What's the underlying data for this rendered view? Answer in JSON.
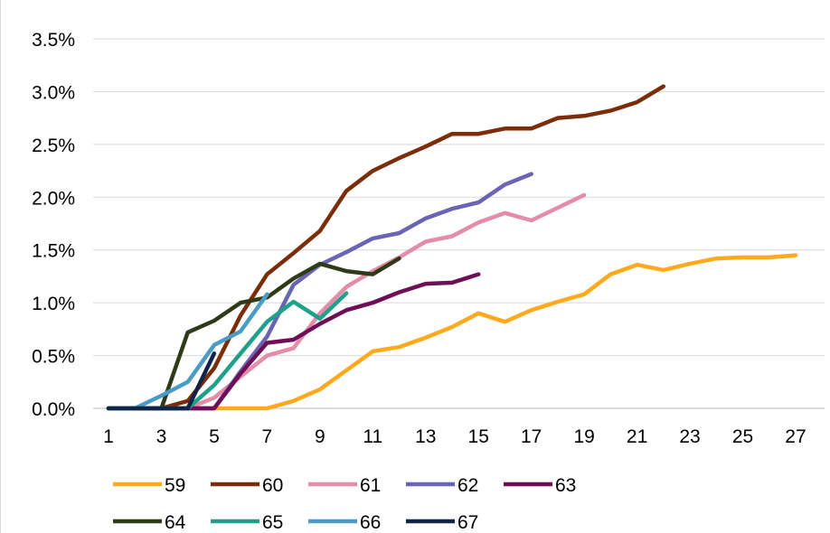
{
  "chart_data": {
    "type": "line",
    "title": "",
    "xlabel": "",
    "ylabel": "",
    "x_tick_labels": [
      "1",
      "3",
      "5",
      "7",
      "9",
      "11",
      "13",
      "15",
      "17",
      "19",
      "21",
      "23",
      "25",
      "27"
    ],
    "y_tick_labels": [
      "0.0%",
      "0.5%",
      "1.0%",
      "1.5%",
      "2.0%",
      "2.5%",
      "3.0%",
      "3.5%"
    ],
    "xlim": [
      1,
      28
    ],
    "ylim": [
      0,
      3.5
    ],
    "y_unit": "%",
    "grid": true,
    "legend_position": "bottom",
    "series": [
      {
        "name": "59",
        "color": "#FFAA1C",
        "x": [
          1,
          2,
          3,
          4,
          5,
          6,
          7,
          8,
          9,
          10,
          11,
          12,
          13,
          14,
          15,
          16,
          17,
          18,
          19,
          20,
          21,
          22,
          23,
          24,
          25,
          26,
          27
        ],
        "values": [
          0,
          0,
          0,
          0,
          0,
          0,
          0,
          0.07,
          0.18,
          0.36,
          0.54,
          0.58,
          0.67,
          0.77,
          0.9,
          0.82,
          0.93,
          1.01,
          1.08,
          1.27,
          1.36,
          1.31,
          1.37,
          1.42,
          1.43,
          1.43,
          1.45
        ]
      },
      {
        "name": "60",
        "color": "#7B2D0A",
        "x": [
          1,
          2,
          3,
          4,
          5,
          6,
          7,
          8,
          9,
          10,
          11,
          12,
          13,
          14,
          15,
          16,
          17,
          18,
          19,
          20,
          21,
          22
        ],
        "values": [
          0,
          0,
          0,
          0.07,
          0.38,
          0.88,
          1.27,
          1.47,
          1.68,
          2.06,
          2.25,
          2.37,
          2.48,
          2.6,
          2.6,
          2.65,
          2.65,
          2.75,
          2.77,
          2.82,
          2.9,
          3.05
        ]
      },
      {
        "name": "61",
        "color": "#E48CA8",
        "x": [
          1,
          2,
          3,
          4,
          5,
          6,
          7,
          8,
          9,
          10,
          11,
          12,
          13,
          14,
          15,
          16,
          17,
          18,
          19
        ],
        "values": [
          0,
          0,
          0,
          0,
          0.1,
          0.3,
          0.5,
          0.57,
          0.9,
          1.15,
          1.3,
          1.43,
          1.58,
          1.63,
          1.76,
          1.85,
          1.78,
          1.9,
          2.02
        ]
      },
      {
        "name": "62",
        "color": "#6A64B4",
        "x": [
          1,
          2,
          3,
          4,
          5,
          6,
          7,
          8,
          9,
          10,
          11,
          12,
          13,
          14,
          15,
          16,
          17
        ],
        "values": [
          0,
          0,
          0,
          0,
          0,
          0.35,
          0.68,
          1.17,
          1.36,
          1.48,
          1.61,
          1.66,
          1.8,
          1.89,
          1.95,
          2.12,
          2.22
        ]
      },
      {
        "name": "63",
        "color": "#6E0E57",
        "x": [
          1,
          2,
          3,
          4,
          5,
          6,
          7,
          8,
          9,
          10,
          11,
          12,
          13,
          14,
          15
        ],
        "values": [
          0,
          0,
          0,
          0,
          0,
          0.33,
          0.62,
          0.65,
          0.8,
          0.93,
          1.0,
          1.1,
          1.18,
          1.19,
          1.27
        ]
      },
      {
        "name": "64",
        "color": "#2E3A18",
        "x": [
          1,
          2,
          3,
          4,
          5,
          6,
          7,
          8,
          9,
          10,
          11,
          12
        ],
        "values": [
          0,
          0,
          0,
          0.72,
          0.83,
          1.0,
          1.05,
          1.23,
          1.37,
          1.3,
          1.27,
          1.42
        ]
      },
      {
        "name": "65",
        "color": "#1FA08A",
        "x": [
          1,
          2,
          3,
          4,
          5,
          6,
          7,
          8,
          9,
          10
        ],
        "values": [
          0,
          0,
          0,
          0,
          0.22,
          0.52,
          0.82,
          1.01,
          0.85,
          1.09
        ]
      },
      {
        "name": "66",
        "color": "#4A9CC6",
        "x": [
          1,
          2,
          3,
          4,
          5,
          6,
          7
        ],
        "values": [
          0,
          0,
          0.12,
          0.25,
          0.6,
          0.73,
          1.08
        ]
      },
      {
        "name": "67",
        "color": "#0F2447",
        "x": [
          1,
          2,
          3,
          4,
          5
        ],
        "values": [
          0,
          0,
          0,
          0,
          0.52
        ]
      }
    ]
  }
}
